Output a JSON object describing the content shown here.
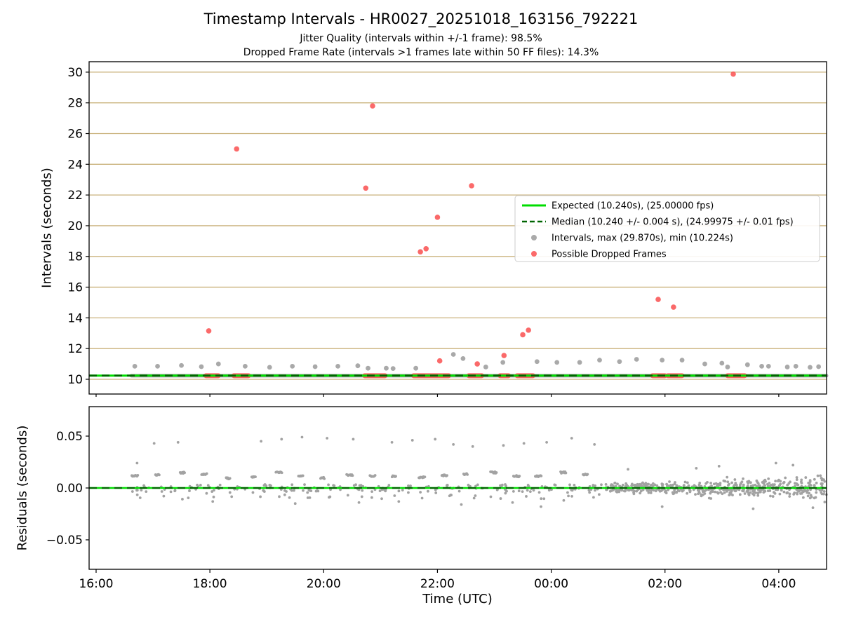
{
  "title": "Timestamp Intervals - HR0027_20251018_163156_792221",
  "subtitle1": "Jitter Quality (intervals within +/-1 frame): 98.5%",
  "subtitle2": "Dropped Frame Rate (intervals >1 frames late within 50 FF files): 14.3%",
  "xlabel": "Time (UTC)",
  "colors": {
    "expected": "#00dd00",
    "median": "#006400",
    "intervals": "#9b9b9b",
    "dropped": "#fa5050",
    "grid": "#c9b17a",
    "residuals": "#8b8b8b"
  },
  "chart_data": [
    {
      "id": "intervals",
      "type": "scatter",
      "ylabel": "Intervals (seconds)",
      "xlim": [
        15.877,
        28.84
      ],
      "ylim": [
        9.04,
        30.68
      ],
      "grid": "y",
      "xticks": [
        {
          "v": 16,
          "label": "16:00"
        },
        {
          "v": 18,
          "label": "18:00"
        },
        {
          "v": 20,
          "label": "20:00"
        },
        {
          "v": 22,
          "label": "22:00"
        },
        {
          "v": 24,
          "label": "00:00"
        },
        {
          "v": 26,
          "label": "02:00"
        },
        {
          "v": 28,
          "label": "04:00"
        }
      ],
      "yticks": [
        10,
        12,
        14,
        16,
        18,
        20,
        22,
        24,
        26,
        28,
        30
      ],
      "expected_y": 10.24,
      "median_y": 10.24,
      "baseline": {
        "x0": 16.62,
        "x1": 28.84,
        "y": 10.235
      },
      "dropped_baseline_segments": [
        [
          17.93,
          18.15
        ],
        [
          18.42,
          18.68
        ],
        [
          20.72,
          21.08
        ],
        [
          21.58,
          22.2
        ],
        [
          22.55,
          22.78
        ],
        [
          23.1,
          23.25
        ],
        [
          23.4,
          23.68
        ],
        [
          25.78,
          26.0
        ],
        [
          26.05,
          26.3
        ],
        [
          27.1,
          27.4
        ]
      ],
      "interval_points": [
        [
          16.68,
          10.85
        ],
        [
          17.08,
          10.85
        ],
        [
          17.5,
          10.9
        ],
        [
          17.85,
          10.82
        ],
        [
          18.15,
          11.0
        ],
        [
          18.62,
          10.85
        ],
        [
          19.05,
          10.78
        ],
        [
          19.45,
          10.85
        ],
        [
          19.85,
          10.82
        ],
        [
          20.25,
          10.85
        ],
        [
          20.6,
          10.88
        ],
        [
          20.78,
          10.72
        ],
        [
          21.1,
          10.72
        ],
        [
          21.22,
          10.7
        ],
        [
          21.62,
          10.72
        ],
        [
          22.28,
          11.62
        ],
        [
          22.45,
          11.35
        ],
        [
          22.85,
          10.8
        ],
        [
          23.15,
          11.1
        ],
        [
          23.75,
          11.15
        ],
        [
          24.1,
          11.1
        ],
        [
          24.5,
          11.1
        ],
        [
          24.85,
          11.25
        ],
        [
          25.2,
          11.15
        ],
        [
          25.5,
          11.3
        ],
        [
          25.95,
          11.25
        ],
        [
          26.3,
          11.25
        ],
        [
          26.7,
          11.0
        ],
        [
          27.0,
          11.05
        ],
        [
          27.1,
          10.8
        ],
        [
          27.45,
          10.95
        ],
        [
          27.7,
          10.85
        ],
        [
          27.82,
          10.85
        ],
        [
          28.15,
          10.8
        ],
        [
          28.3,
          10.85
        ],
        [
          28.55,
          10.78
        ],
        [
          28.7,
          10.82
        ]
      ],
      "dropped_points": [
        [
          17.98,
          13.15
        ],
        [
          18.47,
          25.0
        ],
        [
          20.74,
          22.45
        ],
        [
          20.86,
          27.8
        ],
        [
          21.7,
          18.3
        ],
        [
          21.8,
          18.5
        ],
        [
          22.0,
          20.55
        ],
        [
          22.04,
          11.2
        ],
        [
          22.6,
          22.6
        ],
        [
          22.7,
          11.0
        ],
        [
          23.17,
          11.55
        ],
        [
          23.5,
          12.9
        ],
        [
          23.6,
          13.2
        ],
        [
          25.88,
          15.2
        ],
        [
          26.15,
          14.7
        ],
        [
          27.2,
          29.87
        ]
      ],
      "legend": [
        {
          "label": "Expected (10.240s), (25.00000 fps)",
          "marker": "line",
          "color": "#00dd00"
        },
        {
          "label": "Median (10.240 +/- 0.004 s), (24.99975 +/- 0.01 fps)",
          "marker": "dashed",
          "color": "#006400"
        },
        {
          "label": "Intervals, max (29.870s), min (10.224s)",
          "marker": "dot",
          "color": "#9b9b9b"
        },
        {
          "label": "Possible Dropped Frames",
          "marker": "dot",
          "color": "#fa5050"
        }
      ]
    },
    {
      "id": "residuals",
      "type": "scatter",
      "ylabel": "Residuals (seconds)",
      "xlim": [
        15.877,
        28.84
      ],
      "ylim": [
        -0.0784,
        0.0784
      ],
      "grid": "none",
      "yticks": [
        {
          "v": 0.05,
          "label": "0.05"
        },
        {
          "v": 0,
          "label": "0.00"
        },
        {
          "v": -0.05,
          "label": "−0.05"
        }
      ],
      "expected_y": 0,
      "median_y": 0,
      "bursts": {
        "x0": 16.62,
        "x1": 24.75,
        "period": 0.42,
        "seed": 42
      },
      "band": {
        "x0": 24.95,
        "x1": 28.84,
        "n": 520,
        "sd0": 0.0035,
        "sd1": 0.008,
        "seed": 7
      },
      "outliers_high": [
        [
          16.72,
          0.024
        ],
        [
          17.02,
          0.043
        ],
        [
          17.44,
          0.044
        ],
        [
          18.9,
          0.045
        ],
        [
          19.26,
          0.047
        ],
        [
          19.62,
          0.049
        ],
        [
          20.06,
          0.048
        ],
        [
          20.52,
          0.047
        ],
        [
          21.2,
          0.044
        ],
        [
          21.56,
          0.046
        ],
        [
          21.96,
          0.047
        ],
        [
          22.28,
          0.042
        ],
        [
          22.62,
          0.04
        ],
        [
          23.16,
          0.041
        ],
        [
          23.52,
          0.043
        ],
        [
          23.92,
          0.044
        ],
        [
          24.36,
          0.048
        ],
        [
          24.76,
          0.042
        ]
      ],
      "outliers_low": [
        [
          18.05,
          -0.013
        ],
        [
          19.5,
          -0.015
        ],
        [
          20.62,
          -0.014
        ],
        [
          21.32,
          -0.013
        ],
        [
          22.42,
          -0.016
        ],
        [
          23.32,
          -0.014
        ],
        [
          23.82,
          -0.018
        ],
        [
          24.22,
          -0.012
        ]
      ],
      "band_outliers": [
        [
          25.35,
          0.018
        ],
        [
          25.95,
          -0.018
        ],
        [
          26.55,
          0.019
        ],
        [
          26.95,
          0.021
        ],
        [
          27.55,
          -0.02
        ],
        [
          27.95,
          0.024
        ],
        [
          28.25,
          0.022
        ],
        [
          28.6,
          -0.019
        ]
      ]
    }
  ]
}
